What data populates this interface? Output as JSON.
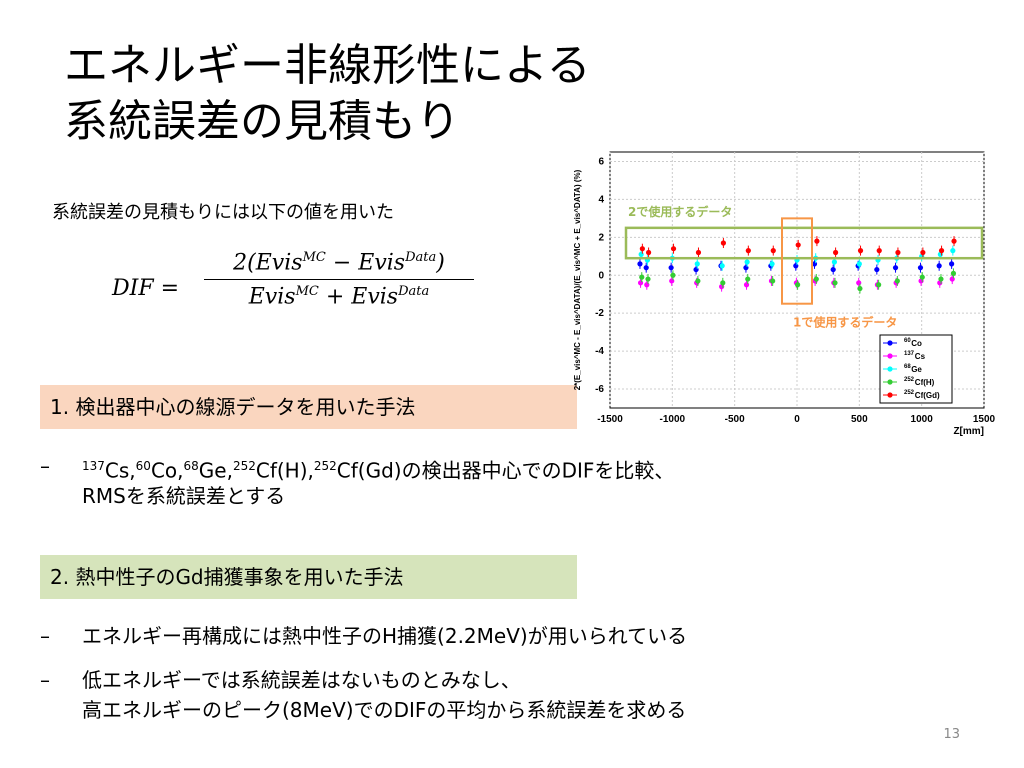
{
  "slide": {
    "title_line1": "エネルギー非線形性による",
    "title_line2": "系統誤差の見積もり",
    "intro": "系統誤差の見積もりには以下の値を用いた",
    "formula": {
      "lhs": "DIF =",
      "num_pre": "2(Evis",
      "num_sup1": "MC",
      "num_mid": " − Evis",
      "num_sup2": "Data",
      "num_post": ")",
      "den_pre": "Evis",
      "den_sup1": "MC",
      "den_mid": " + Evis",
      "den_sup2": "Data"
    },
    "method1": "1.   検出器中心の線源データを用いた手法",
    "method1_bullet": {
      "dash": "–",
      "parts": [
        "137",
        "Cs,",
        "60",
        "Co,",
        "68",
        "Ge,",
        "252",
        "Cf(H),",
        "252",
        "Cf(Gd)の検出器中心でのDIFを比較、"
      ],
      "line2": "RMSを系統誤差とする"
    },
    "method2": "2.   熱中性子のGd捕獲事象を用いた手法",
    "method2_bullets": [
      {
        "dash": "–",
        "line1": "エネルギー再構成には熱中性子のH捕獲(2.2MeV)が用いられている"
      },
      {
        "dash": "–",
        "line1": "低エネルギーでは系統誤差はないものとみなし、",
        "line2": "高エネルギーのピーク(8MeV)でのDIFの平均から系統誤差を求める"
      }
    ],
    "page_number": "13"
  },
  "chart_data": {
    "type": "scatter",
    "xlabel": "Z[mm]",
    "ylabel": "2*(E_vis^MC - E_vis^DATA)/(E_vis^MC + E_vis^DATA) (%)",
    "xlim": [
      -1500,
      1500
    ],
    "ylim": [
      -7,
      6.5
    ],
    "x_ticks": [
      "-1500",
      "-1000",
      "-500",
      "0",
      "500",
      "1000",
      "1500"
    ],
    "y_ticks": [
      "-6",
      "-4",
      "-2",
      "0",
      "2",
      "4",
      "6"
    ],
    "grid": true,
    "legend_position": "bottom-right",
    "annotations": {
      "green_box_label": "2で使用するデータ",
      "orange_box_label": "1で使用するデータ",
      "green_color": "#9bbb59",
      "orange_color": "#f79646"
    },
    "x": [
      -1250,
      -1200,
      -1000,
      -800,
      -600,
      -400,
      -200,
      0,
      150,
      300,
      500,
      650,
      800,
      1000,
      1150,
      1250
    ],
    "series": [
      {
        "name": "60Co",
        "sup": "60",
        "label": "Co",
        "color": "#0000ff",
        "values": [
          0.6,
          0.4,
          0.4,
          0.3,
          0.5,
          0.4,
          0.5,
          0.5,
          0.6,
          0.3,
          0.5,
          0.3,
          0.4,
          0.4,
          0.5,
          0.6
        ]
      },
      {
        "name": "137Cs",
        "sup": "137",
        "label": "Cs",
        "color": "#ff00ff",
        "values": [
          -0.4,
          -0.5,
          -0.3,
          -0.4,
          -0.6,
          -0.5,
          -0.3,
          -0.4,
          -0.3,
          -0.4,
          -0.4,
          -0.5,
          -0.4,
          -0.3,
          -0.4,
          -0.2
        ]
      },
      {
        "name": "68Ge",
        "sup": "68",
        "label": "Ge",
        "color": "#00ffff",
        "values": [
          1.1,
          0.8,
          0.9,
          0.6,
          0.5,
          0.7,
          0.6,
          0.8,
          0.9,
          0.7,
          0.6,
          0.8,
          0.9,
          1.0,
          1.1,
          1.3
        ]
      },
      {
        "name": "252Cf(H)",
        "sup": "252",
        "label": "Cf(H)",
        "color": "#33cc33",
        "values": [
          -0.1,
          -0.2,
          0.0,
          -0.3,
          -0.4,
          -0.2,
          -0.3,
          -0.5,
          -0.2,
          -0.4,
          -0.7,
          -0.5,
          -0.3,
          -0.1,
          -0.2,
          0.1
        ]
      },
      {
        "name": "252Cf(Gd)",
        "sup": "252",
        "label": "Cf(Gd)",
        "color": "#ff0000",
        "values": [
          1.4,
          1.2,
          1.4,
          1.2,
          1.7,
          1.3,
          1.3,
          1.6,
          1.8,
          1.2,
          1.3,
          1.3,
          1.2,
          1.2,
          1.3,
          1.8
        ]
      }
    ]
  }
}
